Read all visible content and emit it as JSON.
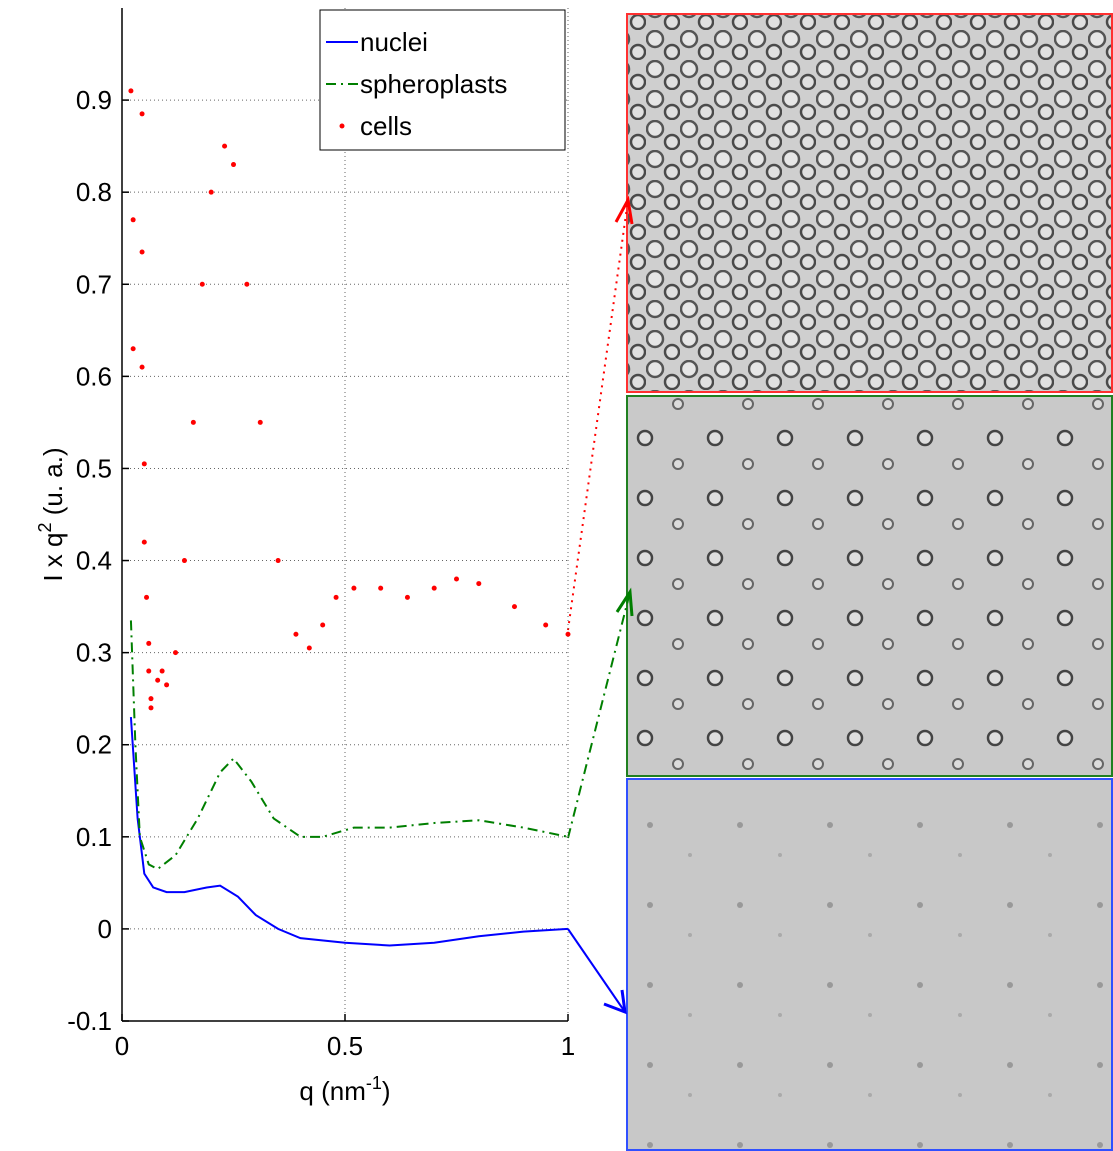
{
  "chart_data": {
    "type": "line",
    "x_label": {
      "base": "q (nm",
      "sup": "-1",
      "rest": ")"
    },
    "y_label": {
      "base": "I x q",
      "sup": "2",
      "rest": " (u. a.)"
    },
    "xlim": [
      0,
      1
    ],
    "ylim": [
      -0.1,
      1.0
    ],
    "xticks": [
      0,
      0.5,
      1
    ],
    "yticks": [
      -0.1,
      0,
      0.1,
      0.2,
      0.3,
      0.4,
      0.5,
      0.6,
      0.7,
      0.8,
      0.9
    ],
    "grid": true,
    "legend": "upper right",
    "series": [
      {
        "name": "nuclei",
        "color": "#0000ff",
        "linestyle": "solid",
        "x": [
          0.02,
          0.035,
          0.05,
          0.07,
          0.1,
          0.14,
          0.19,
          0.22,
          0.26,
          0.3,
          0.35,
          0.4,
          0.5,
          0.6,
          0.7,
          0.8,
          0.9,
          1.0
        ],
        "values": [
          0.23,
          0.12,
          0.06,
          0.045,
          0.04,
          0.04,
          0.045,
          0.047,
          0.035,
          0.015,
          0,
          -0.01,
          -0.015,
          -0.018,
          -0.015,
          -0.008,
          -0.003,
          0
        ]
      },
      {
        "name": "spheroplasts",
        "color": "#007f00",
        "linestyle": "dashdot",
        "x": [
          0.02,
          0.03,
          0.04,
          0.06,
          0.08,
          0.12,
          0.17,
          0.22,
          0.25,
          0.29,
          0.34,
          0.4,
          0.45,
          0.52,
          0.6,
          0.7,
          0.8,
          0.9,
          1.0
        ],
        "values": [
          0.335,
          0.2,
          0.1,
          0.07,
          0.065,
          0.08,
          0.12,
          0.17,
          0.185,
          0.16,
          0.12,
          0.1,
          0.1,
          0.11,
          0.11,
          0.115,
          0.118,
          0.11,
          0.1
        ]
      },
      {
        "name": "cells",
        "color": "#ff0000",
        "linestyle": "none",
        "marker": "dot",
        "x": [
          0.02,
          0.045,
          0.025,
          0.045,
          0.025,
          0.045,
          0.05,
          0.05,
          0.055,
          0.06,
          0.06,
          0.065,
          0.065,
          0.08,
          0.09,
          0.1,
          0.12,
          0.14,
          0.16,
          0.18,
          0.2,
          0.23,
          0.25,
          0.28,
          0.31,
          0.35,
          0.39,
          0.42,
          0.45,
          0.48,
          0.52,
          0.58,
          0.64,
          0.7,
          0.75,
          0.8,
          0.88,
          0.95,
          1.0
        ],
        "values": [
          0.91,
          0.885,
          0.77,
          0.735,
          0.63,
          0.61,
          0.505,
          0.42,
          0.36,
          0.31,
          0.28,
          0.25,
          0.24,
          0.27,
          0.28,
          0.265,
          0.3,
          0.4,
          0.55,
          0.7,
          0.8,
          0.85,
          0.83,
          0.7,
          0.55,
          0.4,
          0.32,
          0.305,
          0.33,
          0.36,
          0.37,
          0.37,
          0.36,
          0.37,
          0.38,
          0.375,
          0.35,
          0.33,
          0.32
        ]
      }
    ]
  }
}
